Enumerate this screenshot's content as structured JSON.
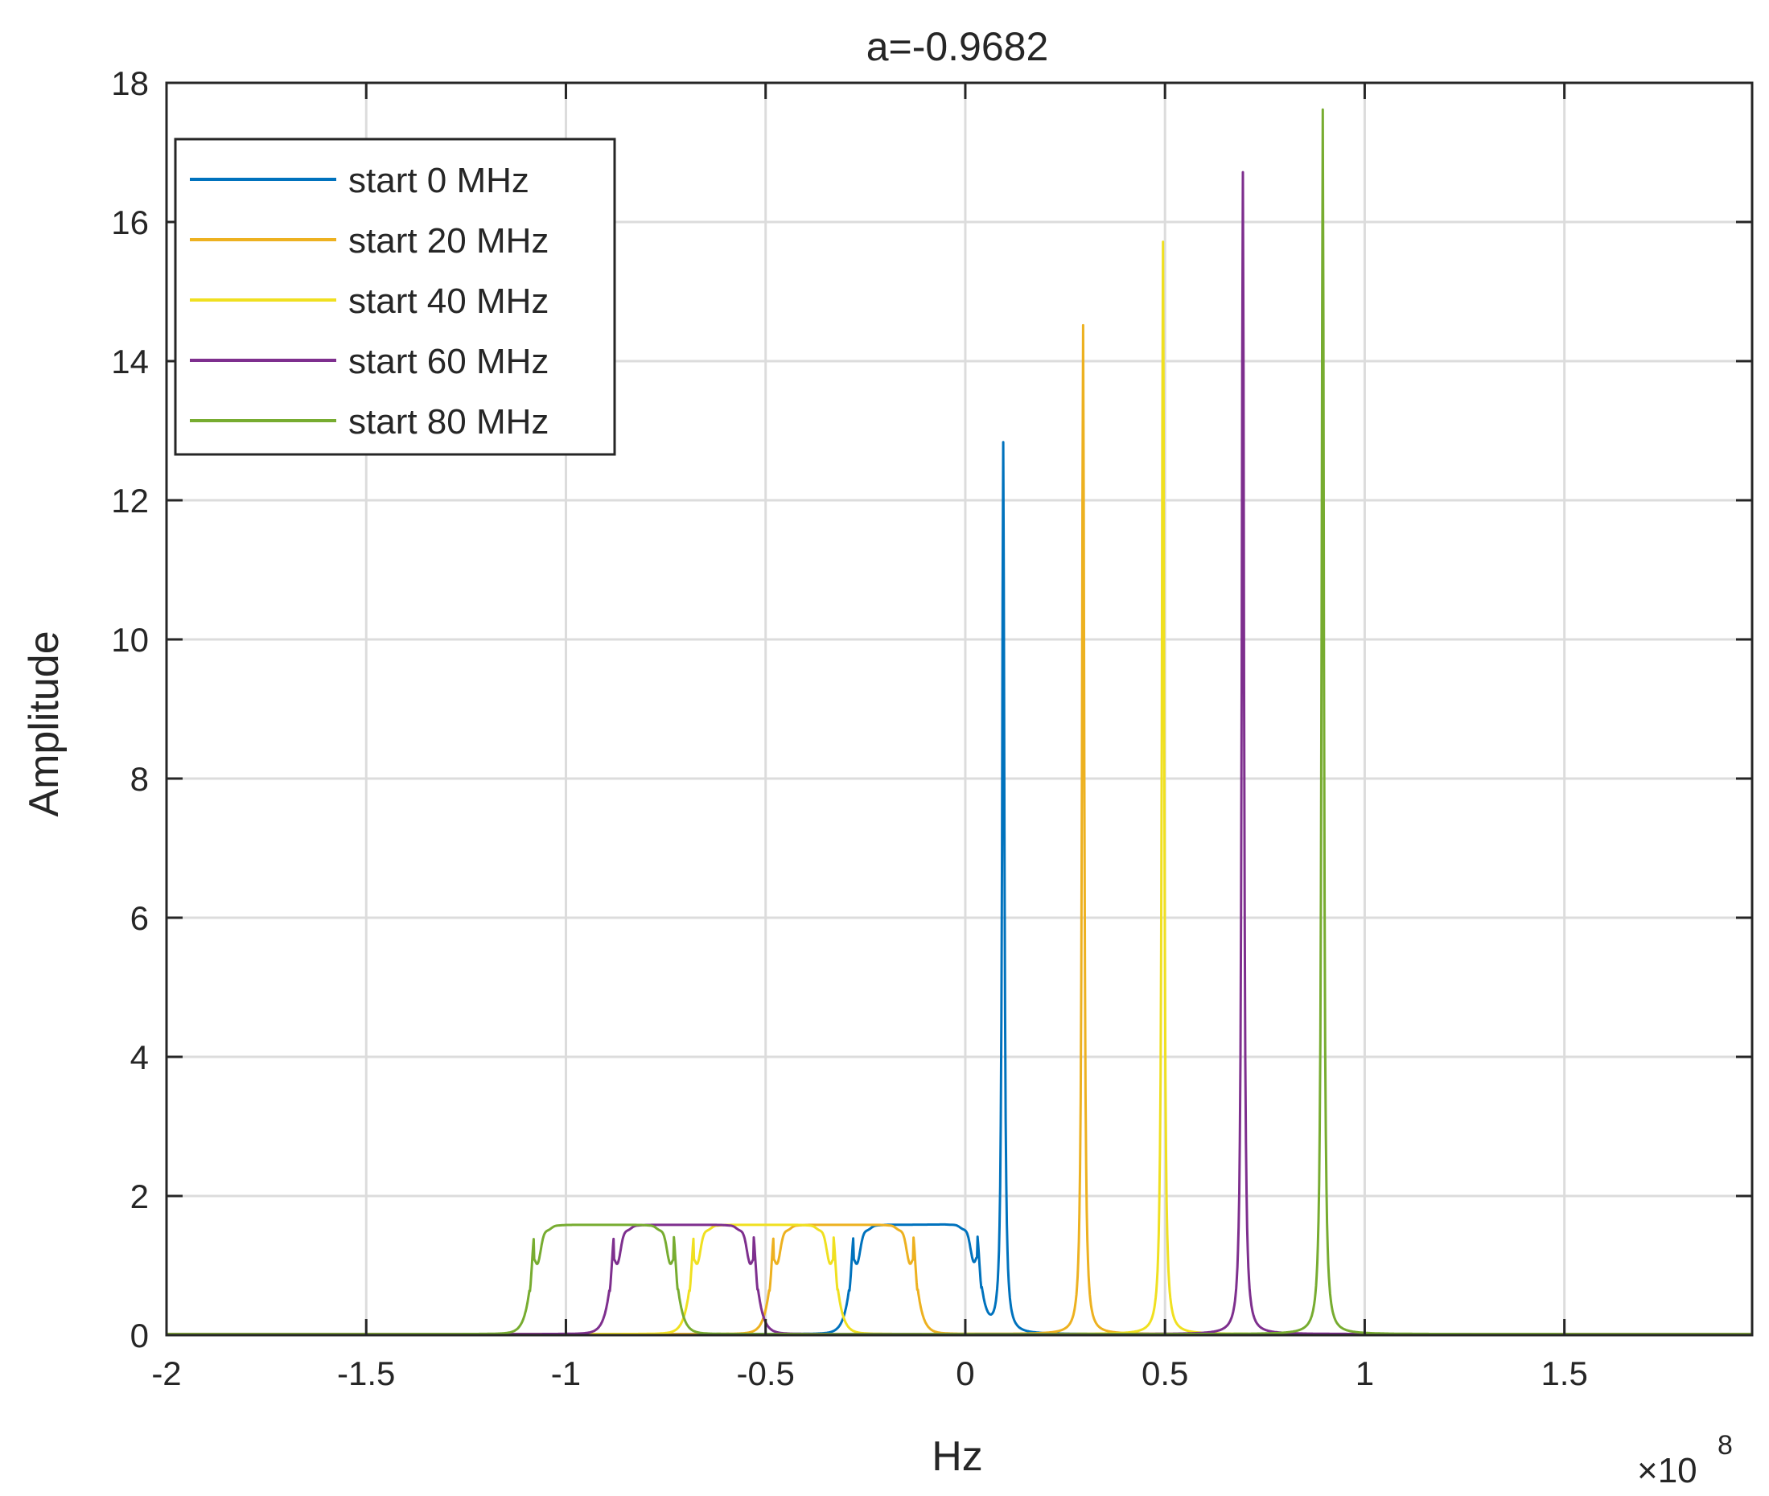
{
  "chart_data": {
    "type": "line",
    "title": "a=-0.9682",
    "xlabel": "Hz",
    "ylabel": "Amplitude",
    "x_exponent_label": "×10",
    "x_exponent_power": "8",
    "xlim": [
      -2,
      1.97
    ],
    "ylim": [
      0,
      18
    ],
    "x_units_note": "values in units of 1e8 Hz",
    "xticks": [
      -2,
      -1.5,
      -1,
      -0.5,
      0,
      0.5,
      1,
      1.5
    ],
    "xtick_labels": [
      "-2",
      "-1.5",
      "-1",
      "-0.5",
      "0",
      "0.5",
      "1",
      "1.5"
    ],
    "yticks": [
      0,
      2,
      4,
      6,
      8,
      10,
      12,
      14,
      16,
      18
    ],
    "ytick_labels": [
      "0",
      "2",
      "4",
      "6",
      "8",
      "10",
      "12",
      "14",
      "16",
      "18"
    ],
    "grid": true,
    "legend_position": "top-left",
    "series": [
      {
        "name": "start 0 MHz",
        "color": "#0072BD",
        "band": [
          -0.28,
          0.03
        ],
        "peak_x": 0.095,
        "peak_y": 12.8
      },
      {
        "name": "start 20 MHz",
        "color": "#EDB120",
        "band": [
          -0.48,
          -0.13
        ],
        "peak_x": 0.295,
        "peak_y": 14.5
      },
      {
        "name": "start 40 MHz",
        "color": "#F0E020",
        "band": [
          -0.68,
          -0.33
        ],
        "peak_x": 0.495,
        "peak_y": 15.7
      },
      {
        "name": "start 60 MHz",
        "color": "#7E2F8E",
        "band": [
          -0.88,
          -0.53
        ],
        "peak_x": 0.695,
        "peak_y": 16.7
      },
      {
        "name": "start 80 MHz",
        "color": "#77AC30",
        "band": [
          -1.08,
          -0.73
        ],
        "peak_x": 0.895,
        "peak_y": 17.6
      }
    ],
    "plateau_level": 1.57
  }
}
